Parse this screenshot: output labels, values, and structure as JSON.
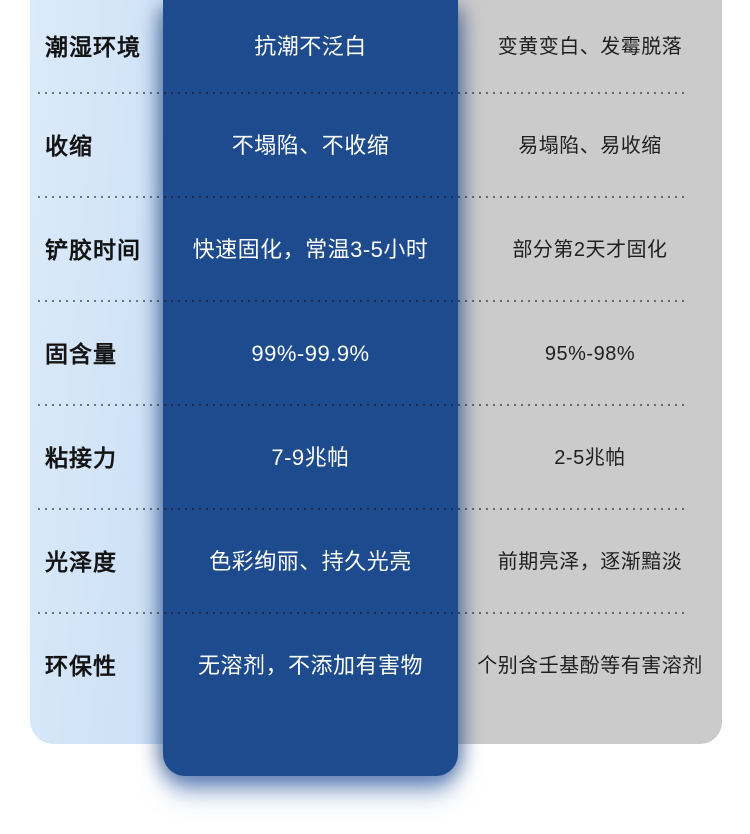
{
  "colors": {
    "attribute_col_bg_left": "#dcebfb",
    "attribute_col_bg_right": "#cbdff5",
    "ours_col_bg": "#1d4b8d",
    "others_col_bg": "#cbcbcb",
    "attribute_text": "#141414",
    "ours_text": "#ffffff",
    "others_text": "#1f1f1f",
    "separator_dot": "rgba(22,22,30,0.55)"
  },
  "chart_data": {
    "type": "table",
    "title": "",
    "layout": "three-column comparison, 7 rows, dotted row separators, center column highlighted dark blue with rounded glowing bottom",
    "rows": [
      {
        "attribute": "潮湿环境",
        "ours": "抗潮不泛白",
        "others": "变黄变白、发霉脱落"
      },
      {
        "attribute": "收缩",
        "ours": "不塌陷、不收缩",
        "others": "易塌陷、易收缩"
      },
      {
        "attribute": "铲胶时间",
        "ours": "快速固化，常温3-5小时",
        "others": "部分第2天才固化"
      },
      {
        "attribute": "固含量",
        "ours": "99%-99.9%",
        "others": "95%-98%"
      },
      {
        "attribute": "粘接力",
        "ours": "7-9兆帕",
        "others": "2-5兆帕"
      },
      {
        "attribute": "光泽度",
        "ours": "色彩绚丽、持久光亮",
        "others": "前期亮泽，逐渐黯淡"
      },
      {
        "attribute": "环保性",
        "ours": "无溶剂，不添加有害物",
        "others": "个别含壬基酚等有害溶剂"
      }
    ]
  }
}
